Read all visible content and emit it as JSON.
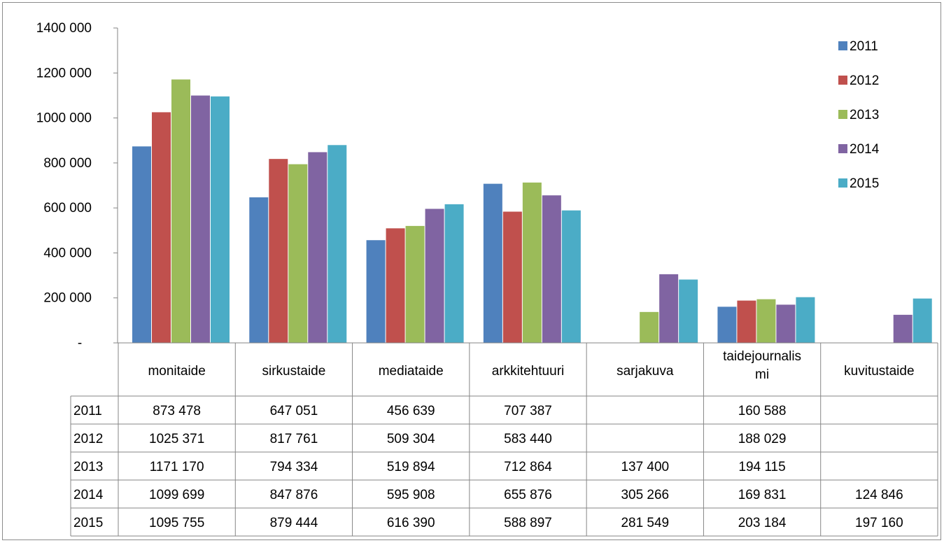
{
  "chart_data": {
    "type": "bar",
    "categories": [
      "monitaide",
      "sirkustaide",
      "mediataide",
      "arkkitehtuuri",
      "sarjakuva",
      "taidejournalismi",
      "kuvitustaide"
    ],
    "category_label_lines": [
      [
        "monitaide"
      ],
      [
        "sirkustaide"
      ],
      [
        "mediataide"
      ],
      [
        "arkkitehtuuri"
      ],
      [
        "sarjakuva"
      ],
      [
        "taidejournalis",
        "mi"
      ],
      [
        "kuvitustaide"
      ]
    ],
    "series": [
      {
        "name": "2011",
        "color": "#4f81bd",
        "values": [
          873478,
          647051,
          456639,
          707387,
          null,
          160588,
          null
        ],
        "labels": [
          "873 478",
          "647 051",
          "456 639",
          "707 387",
          "",
          "160 588",
          ""
        ]
      },
      {
        "name": "2012",
        "color": "#c0504d",
        "values": [
          1025371,
          817761,
          509304,
          583440,
          null,
          188029,
          null
        ],
        "labels": [
          "1025 371",
          "817 761",
          "509 304",
          "583 440",
          "",
          "188 029",
          ""
        ]
      },
      {
        "name": "2013",
        "color": "#9bbb59",
        "values": [
          1171170,
          794334,
          519894,
          712864,
          137400,
          194115,
          null
        ],
        "labels": [
          "1171 170",
          "794 334",
          "519 894",
          "712 864",
          "137 400",
          "194 115",
          ""
        ]
      },
      {
        "name": "2014",
        "color": "#8064a2",
        "values": [
          1099699,
          847876,
          595908,
          655876,
          305266,
          169831,
          124846
        ],
        "labels": [
          "1099 699",
          "847 876",
          "595 908",
          "655 876",
          "305 266",
          "169 831",
          "124 846"
        ]
      },
      {
        "name": "2015",
        "color": "#4bacc6",
        "values": [
          1095755,
          879444,
          616390,
          588897,
          281549,
          203184,
          197160
        ],
        "labels": [
          "1095 755",
          "879 444",
          "616 390",
          "588 897",
          "281 549",
          "203 184",
          "197 160"
        ]
      }
    ],
    "ylim": [
      0,
      1400000
    ],
    "yticks": [
      0,
      200000,
      400000,
      600000,
      800000,
      1000000,
      1200000,
      1400000
    ],
    "ytick_labels": [
      "-",
      "200 000",
      "400 000",
      "600 000",
      "800 000",
      "1000 000",
      "1200 000",
      "1400 000"
    ],
    "grid": false,
    "legend": "right",
    "data_table": true
  }
}
